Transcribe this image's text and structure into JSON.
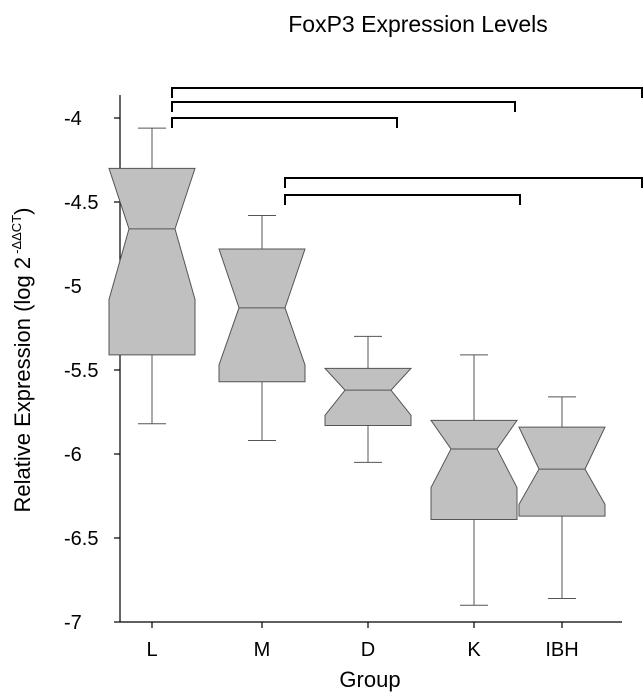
{
  "chart_data": {
    "type": "box",
    "title": "FoxP3 Expression Levels",
    "xlabel": "Group",
    "ylabel": {
      "main": "Relative Expression (log 2",
      "sup": "-ΔΔCT",
      "close": ")"
    },
    "ylim": [
      -7,
      -3.95
    ],
    "yticks": [
      -4,
      -4.5,
      -5,
      -5.5,
      -6,
      -6.5,
      -7
    ],
    "ytick_labels": [
      "-4",
      "-4.5",
      "-5",
      "-5.5",
      "-6",
      "-6.5",
      "-7"
    ],
    "notched": true,
    "box_color": "#c0c0c0",
    "grid": false,
    "categories": [
      "L",
      "M",
      "D",
      "K",
      "IBH"
    ],
    "boxes": [
      {
        "label": "L",
        "whisker_low": -5.82,
        "q1": -5.41,
        "median": -4.66,
        "q3": -4.3,
        "whisker_high": -4.06,
        "notch_low": -5.08,
        "notch_high": -4.3
      },
      {
        "label": "M",
        "whisker_low": -5.92,
        "q1": -5.57,
        "median": -5.13,
        "q3": -4.78,
        "whisker_high": -4.58,
        "notch_low": -5.47,
        "notch_high": -4.78
      },
      {
        "label": "D",
        "whisker_low": -6.05,
        "q1": -5.83,
        "median": -5.62,
        "q3": -5.49,
        "whisker_high": -5.3,
        "notch_low": -5.77,
        "notch_high": -5.49
      },
      {
        "label": "K",
        "whisker_low": -6.9,
        "q1": -6.39,
        "median": -5.97,
        "q3": -5.8,
        "whisker_high": -5.41,
        "notch_low": -6.2,
        "notch_high": -5.8
      },
      {
        "label": "IBH",
        "whisker_low": -6.86,
        "q1": -6.37,
        "median": -6.09,
        "q3": -5.84,
        "whisker_high": -5.66,
        "notch_low": -6.3,
        "notch_high": -5.84
      }
    ],
    "comparison_brackets": [
      {
        "from": "L",
        "to": "IBH"
      },
      {
        "from": "L",
        "to": "K"
      },
      {
        "from": "L",
        "to": "D"
      },
      {
        "from": "M",
        "to": "IBH"
      },
      {
        "from": "M",
        "to": "K"
      }
    ]
  }
}
